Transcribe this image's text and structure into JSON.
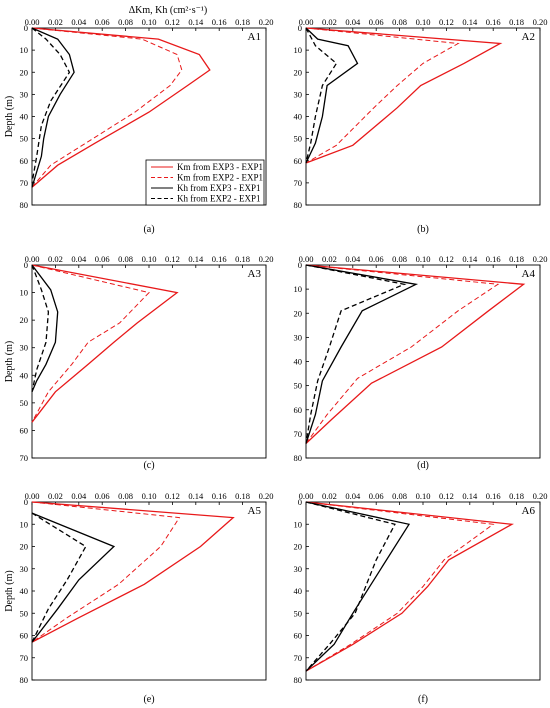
{
  "figure": {
    "top_axis_title": "ΔKm, Kh (cm²·s⁻¹)",
    "y_axis_title": "Depth (m)"
  },
  "legend": {
    "entries": [
      {
        "label": "Km from EXP3 - EXP1",
        "color": "#e8191a",
        "dash": "solid"
      },
      {
        "label": "Km from EXP2 - EXP1",
        "color": "#e8191a",
        "dash": "dashed"
      },
      {
        "label": "Kh  from EXP3 - EXP1",
        "color": "#000000",
        "dash": "solid"
      },
      {
        "label": "Kh  from EXP2 - EXP1",
        "color": "#000000",
        "dash": "dashed"
      }
    ]
  },
  "colors": {
    "km": "#e8191a",
    "kh": "#000000"
  },
  "chart_data": [
    {
      "type": "line",
      "panel": "A1",
      "caption": "(a)",
      "xlim": [
        0,
        0.2
      ],
      "ylim": [
        0,
        80
      ],
      "xticks": [
        "0.00",
        "0.02",
        "0.04",
        "0.06",
        "0.08",
        "0.10",
        "0.12",
        "0.14",
        "0.16",
        "0.18",
        "0.20"
      ],
      "yticks": [
        "0",
        "10",
        "20",
        "30",
        "40",
        "50",
        "60",
        "70",
        "80"
      ],
      "series": [
        {
          "name": "Km from EXP3 - EXP1",
          "x": [
            0,
            0.108,
            0.143,
            0.152,
            0.133,
            0.1,
            0.054,
            0.022,
            0
          ],
          "y": [
            0,
            5,
            12,
            19,
            26,
            38,
            52,
            62,
            72
          ]
        },
        {
          "name": "Km from EXP2 - EXP1",
          "x": [
            0,
            0.094,
            0.124,
            0.128,
            0.118,
            0.088,
            0.046,
            0.016,
            0
          ],
          "y": [
            0,
            5,
            12,
            19,
            26,
            38,
            52,
            62,
            72
          ]
        },
        {
          "name": "Kh  from EXP3 - EXP1",
          "x": [
            0,
            0.022,
            0.032,
            0.036,
            0.024,
            0.014,
            0.01,
            0.008,
            0
          ],
          "y": [
            0,
            5,
            12,
            20,
            30,
            40,
            50,
            58,
            72
          ]
        },
        {
          "name": "Kh  from EXP2 - EXP1",
          "x": [
            0,
            0.012,
            0.024,
            0.032,
            0.016,
            0.008,
            0.004,
            0
          ],
          "y": [
            0,
            5,
            12,
            20,
            33,
            44,
            58,
            70
          ]
        }
      ]
    },
    {
      "type": "line",
      "panel": "A2",
      "caption": "(b)",
      "xlim": [
        0,
        0.2
      ],
      "ylim": [
        0,
        80
      ],
      "xticks": [
        "0.00",
        "0.02",
        "0.04",
        "0.06",
        "0.08",
        "0.10",
        "0.12",
        "0.14",
        "0.16",
        "0.18",
        "0.20"
      ],
      "yticks": [
        "0",
        "10",
        "20",
        "30",
        "40",
        "50",
        "60",
        "70",
        "80"
      ],
      "series": [
        {
          "name": "Km from EXP3 - EXP1",
          "x": [
            0,
            0.166,
            0.135,
            0.098,
            0.078,
            0.04,
            0
          ],
          "y": [
            0,
            7,
            16,
            26,
            36,
            53,
            61
          ]
        },
        {
          "name": "Km from EXP2 - EXP1",
          "x": [
            0,
            0.13,
            0.1,
            0.078,
            0.058,
            0.026,
            0
          ],
          "y": [
            0,
            7,
            16,
            26,
            36,
            53,
            61
          ]
        },
        {
          "name": "Kh  from EXP3 - EXP1",
          "x": [
            0,
            0.01,
            0.036,
            0.044,
            0.018,
            0.014,
            0.008,
            0
          ],
          "y": [
            0,
            5,
            8,
            16,
            26,
            40,
            52,
            61
          ]
        },
        {
          "name": "Kh  from EXP2 - EXP1",
          "x": [
            0,
            0.008,
            0.026,
            0.014,
            0.008,
            0.004,
            0
          ],
          "y": [
            0,
            8,
            16,
            26,
            40,
            52,
            61
          ]
        }
      ]
    },
    {
      "type": "line",
      "panel": "A3",
      "caption": "(c)",
      "xlim": [
        0,
        0.2
      ],
      "ylim": [
        0,
        70
      ],
      "xticks": [
        "0.00",
        "0.02",
        "0.04",
        "0.06",
        "0.08",
        "0.10",
        "0.12",
        "0.14",
        "0.16",
        "0.18",
        "0.20"
      ],
      "yticks": [
        "0",
        "10",
        "20",
        "30",
        "40",
        "50",
        "60",
        "70"
      ],
      "series": [
        {
          "name": "Km from EXP3 - EXP1",
          "x": [
            0,
            0.124,
            0.09,
            0.07,
            0.048,
            0.02,
            0
          ],
          "y": [
            0,
            10,
            21,
            28,
            36,
            46,
            57
          ]
        },
        {
          "name": "Km from EXP2 - EXP1",
          "x": [
            0,
            0.1,
            0.075,
            0.048,
            0.034,
            0.014,
            0
          ],
          "y": [
            0,
            10,
            21,
            28,
            36,
            46,
            57
          ]
        },
        {
          "name": "Kh  from EXP3 - EXP1",
          "x": [
            0,
            0.016,
            0.022,
            0.02,
            0.012,
            0.004,
            0
          ],
          "y": [
            0,
            9,
            17,
            28,
            36,
            42,
            46
          ]
        },
        {
          "name": "Kh  from EXP2 - EXP1",
          "x": [
            0,
            0.008,
            0.014,
            0.012,
            0.004,
            0
          ],
          "y": [
            0,
            9,
            17,
            28,
            38,
            46
          ]
        }
      ]
    },
    {
      "type": "line",
      "panel": "A4",
      "caption": "(d)",
      "xlim": [
        0,
        0.2
      ],
      "ylim": [
        0,
        80
      ],
      "xticks": [
        "0.00",
        "0.02",
        "0.04",
        "0.06",
        "0.08",
        "0.10",
        "0.12",
        "0.14",
        "0.16",
        "0.18",
        "0.20"
      ],
      "yticks": [
        "0",
        "10",
        "20",
        "30",
        "40",
        "50",
        "60",
        "70",
        "80"
      ],
      "series": [
        {
          "name": "Km from EXP3 - EXP1",
          "x": [
            0,
            0.186,
            0.156,
            0.116,
            0.056,
            0.022,
            0
          ],
          "y": [
            0,
            8,
            19,
            34,
            49,
            64,
            74
          ]
        },
        {
          "name": "Km from EXP2 - EXP1",
          "x": [
            0,
            0.164,
            0.13,
            0.09,
            0.044,
            0.018,
            0
          ],
          "y": [
            0,
            8,
            19,
            34,
            47,
            62,
            74
          ]
        },
        {
          "name": "Kh  from EXP3 - EXP1",
          "x": [
            0,
            0.094,
            0.048,
            0.03,
            0.014,
            0.008,
            0
          ],
          "y": [
            0,
            8,
            19,
            34,
            48,
            62,
            74
          ]
        },
        {
          "name": "Kh  from EXP2 - EXP1",
          "x": [
            0,
            0.084,
            0.03,
            0.02,
            0.01,
            0.004,
            0
          ],
          "y": [
            0,
            8,
            19,
            34,
            48,
            62,
            74
          ]
        }
      ]
    },
    {
      "type": "line",
      "panel": "A5",
      "caption": "(e)",
      "xlim": [
        0,
        0.2
      ],
      "ylim": [
        0,
        80
      ],
      "xticks": [
        "0.00",
        "0.02",
        "0.04",
        "0.06",
        "0.08",
        "0.10",
        "0.12",
        "0.14",
        "0.16",
        "0.18",
        "0.20"
      ],
      "yticks": [
        "0",
        "10",
        "20",
        "30",
        "40",
        "50",
        "60",
        "70",
        "80"
      ],
      "series": [
        {
          "name": "Km from EXP3 - EXP1",
          "x": [
            0,
            0.172,
            0.144,
            0.096,
            0.04,
            0
          ],
          "y": [
            0,
            7,
            20,
            37,
            52,
            63
          ]
        },
        {
          "name": "Km from EXP2 - EXP1",
          "x": [
            0,
            0.126,
            0.11,
            0.074,
            0.03,
            0
          ],
          "y": [
            0,
            7,
            20,
            37,
            52,
            63
          ]
        },
        {
          "name": "Kh  from EXP3 - EXP1",
          "x": [
            0,
            0.07,
            0.04,
            0.022,
            0
          ],
          "y": [
            5,
            20,
            35,
            48,
            63
          ]
        },
        {
          "name": "Kh  from EXP2 - EXP1",
          "x": [
            0,
            0.046,
            0.03,
            0.014,
            0
          ],
          "y": [
            5,
            20,
            35,
            48,
            63
          ]
        }
      ]
    },
    {
      "type": "line",
      "panel": "A6",
      "caption": "(f)",
      "xlim": [
        0,
        0.2
      ],
      "ylim": [
        0,
        80
      ],
      "xticks": [
        "0.00",
        "0.02",
        "0.04",
        "0.06",
        "0.08",
        "0.10",
        "0.12",
        "0.14",
        "0.16",
        "0.18",
        "0.20"
      ],
      "yticks": [
        "0",
        "10",
        "20",
        "30",
        "40",
        "50",
        "60",
        "70",
        "80"
      ],
      "series": [
        {
          "name": "Km from EXP3 - EXP1",
          "x": [
            0,
            0.176,
            0.122,
            0.104,
            0.082,
            0.04,
            0
          ],
          "y": [
            0,
            10,
            26,
            38,
            50,
            64,
            76
          ]
        },
        {
          "name": "Km from EXP2 - EXP1",
          "x": [
            0,
            0.16,
            0.118,
            0.1,
            0.078,
            0.038,
            0
          ],
          "y": [
            0,
            10,
            26,
            38,
            50,
            64,
            76
          ]
        },
        {
          "name": "Kh  from EXP3 - EXP1",
          "x": [
            0,
            0.088,
            0.064,
            0.04,
            0.024,
            0
          ],
          "y": [
            0,
            10,
            30,
            50,
            64,
            76
          ]
        },
        {
          "name": "Kh  from EXP2 - EXP1",
          "x": [
            0,
            0.076,
            0.06,
            0.042,
            0.02,
            0
          ],
          "y": [
            0,
            10,
            26,
            50,
            64,
            76
          ]
        }
      ]
    }
  ]
}
